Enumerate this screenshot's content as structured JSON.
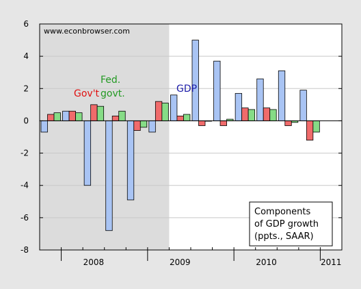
{
  "chart_data": {
    "type": "bar",
    "title": "",
    "xlabel": "",
    "ylabel": "",
    "ylim": [
      -8,
      6
    ],
    "yticks": [
      "6",
      "4",
      "2",
      "0",
      "-2",
      "-4",
      "-6",
      "-8"
    ],
    "yticks_values": [
      6,
      4,
      2,
      0,
      -2,
      -4,
      -6,
      -8
    ],
    "grid": "horizontal",
    "recession_shading": {
      "from_index": 0,
      "to_index": 5,
      "color": "#dcdcdc"
    },
    "categories": [
      "2007Q4",
      "2008Q1",
      "2008Q2",
      "2008Q3",
      "2008Q4",
      "2009Q1",
      "2009Q2",
      "2009Q3",
      "2009Q4",
      "2010Q1",
      "2010Q2",
      "2010Q3",
      "2010Q4",
      "2011Q1"
    ],
    "year_labels": [
      {
        "label": "2008",
        "index": 2.5
      },
      {
        "label": "2009",
        "index": 6.5
      },
      {
        "label": "2010",
        "index": 10.5
      },
      {
        "label": "2011",
        "index": 13.5
      }
    ],
    "series": [
      {
        "name": "GDP",
        "color": "#a9c4f4",
        "values": [
          -0.7,
          0.6,
          -4.0,
          -6.8,
          -4.9,
          -0.7,
          1.6,
          5.0,
          3.7,
          1.7,
          2.6,
          3.1,
          1.9,
          null
        ]
      },
      {
        "name": "Govt",
        "color": "#f06b6b",
        "values": [
          0.4,
          0.6,
          1.0,
          0.3,
          -0.6,
          1.2,
          0.3,
          -0.3,
          -0.3,
          0.8,
          0.8,
          -0.3,
          -1.2,
          null
        ]
      },
      {
        "name": "Fed. govt.",
        "color": "#86dc86",
        "values": [
          0.5,
          0.5,
          0.9,
          0.6,
          -0.4,
          1.1,
          0.4,
          0.0,
          0.1,
          0.7,
          0.7,
          -0.1,
          -0.7,
          null
        ]
      }
    ],
    "annotations": {
      "watermark": "www.econbrowser.com",
      "gdp_label": "GDP",
      "gdp_color": "#1a1aa8",
      "govt_label": "Gov't",
      "govt_color": "#e01010",
      "fed_label_line1": "Fed.",
      "fed_label_line2": "govt.",
      "fed_color": "#229922",
      "legend_box_lines": [
        "Components",
        "of GDP growth",
        "(ppts., SAAR)"
      ]
    }
  }
}
